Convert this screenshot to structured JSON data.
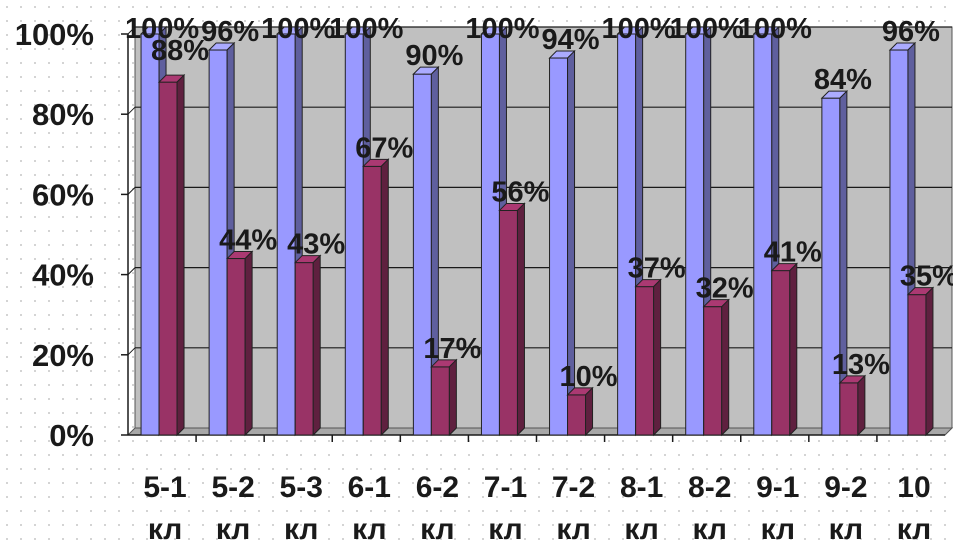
{
  "chart_data": {
    "type": "bar",
    "title": "",
    "xlabel": "",
    "ylabel": "",
    "ylim": [
      0,
      100
    ],
    "y_ticks": [
      "0%",
      "20%",
      "40%",
      "60%",
      "80%",
      "100%"
    ],
    "grid": true,
    "legend": "none",
    "categories": [
      [
        "5-1",
        "кл"
      ],
      [
        "5-2",
        "кл"
      ],
      [
        "5-3",
        "кл"
      ],
      [
        "6-1",
        "кл"
      ],
      [
        "6-2",
        "кл"
      ],
      [
        "7-1",
        "кл"
      ],
      [
        "7-2",
        "кл"
      ],
      [
        "8-1",
        "кл"
      ],
      [
        "8-2",
        "кл"
      ],
      [
        "9-1",
        "кл"
      ],
      [
        "9-2",
        "кл"
      ],
      [
        "10",
        "кл"
      ]
    ],
    "series": [
      {
        "color": "#9999ff",
        "values": [
          100,
          96,
          100,
          100,
          90,
          100,
          94,
          100,
          100,
          100,
          84,
          96
        ],
        "labels": [
          "100%",
          "96%",
          "100%",
          "100%",
          "90%",
          "100%",
          "94%",
          "100%",
          "100%",
          "100%",
          "84%",
          "96%"
        ]
      },
      {
        "color": "#993366",
        "values": [
          88,
          44,
          43,
          67,
          17,
          56,
          10,
          37,
          32,
          41,
          13,
          35
        ],
        "labels": [
          "88%",
          "44%",
          "43%",
          "67%",
          "17%",
          "56%",
          "10%",
          "37%",
          "32%",
          "41%",
          "13%",
          "35%"
        ]
      }
    ]
  }
}
